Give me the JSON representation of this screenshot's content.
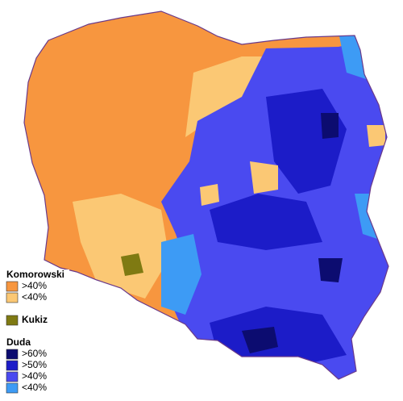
{
  "legend": {
    "groups": [
      {
        "title": "Komorowski",
        "items": [
          {
            "label": ">40%",
            "color": "#f7963f"
          },
          {
            "label": "<40%",
            "color": "#fbc874"
          }
        ]
      },
      {
        "items": [
          {
            "label": "Kukiz",
            "color": "#7f7a12"
          }
        ]
      },
      {
        "title": "Duda",
        "items": [
          {
            "label": ">60%",
            "color": "#0c0c70"
          },
          {
            "label": ">50%",
            "color": "#1c1cc8"
          },
          {
            "label": ">40%",
            "color": "#4a4af0"
          },
          {
            "label": "<40%",
            "color": "#3d9bf5"
          }
        ]
      }
    ]
  }
}
